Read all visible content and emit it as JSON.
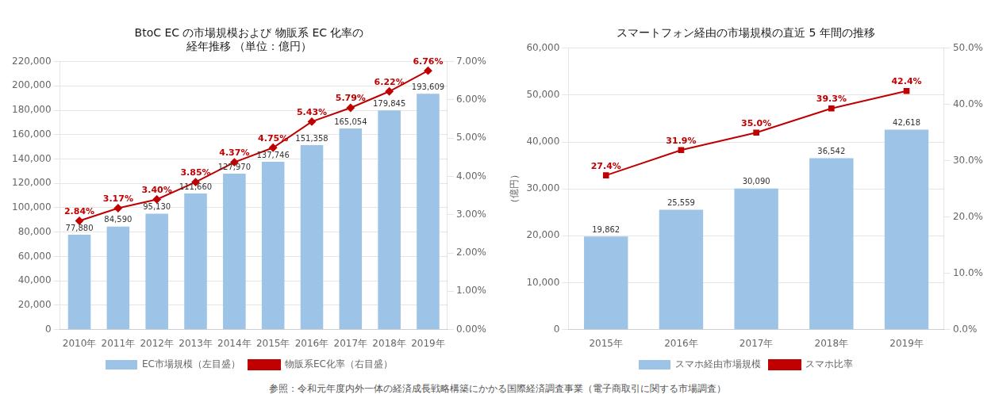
{
  "footer": "参照：令和元年度内外一体の経済成長戦略構築にかかる国際経済調査事業（電子商取引に関する市場調査）",
  "chart_data": [
    {
      "type": "bar",
      "title": [
        "BtoC EC の市場規模および 物販系 EC 化率の",
        "経年推移 （単位：億円）"
      ],
      "categories": [
        "2010年",
        "2011年",
        "2012年",
        "2013年",
        "2014年",
        "2015年",
        "2016年",
        "2017年",
        "2018年",
        "2019年"
      ],
      "series": [
        {
          "name": "EC市場規模（左目盛）",
          "type": "bar",
          "color": "#9DC3E6",
          "values": [
            77880,
            84590,
            95130,
            111660,
            127970,
            137746,
            151358,
            165054,
            179845,
            193609
          ],
          "value_labels": [
            "77,880",
            "84,590",
            "95,130",
            "111,660",
            "127,970",
            "137,746",
            "151,358",
            "165,054",
            "179,845",
            "193,609"
          ]
        },
        {
          "name": "物販系EC化率（右目盛）",
          "type": "line",
          "color": "#C00000",
          "axis": "y2",
          "marker": "diamond",
          "values": [
            2.84,
            3.17,
            3.4,
            3.85,
            4.37,
            4.75,
            5.43,
            5.79,
            6.22,
            6.76
          ],
          "value_labels": [
            "2.84%",
            "3.17%",
            "3.40%",
            "3.85%",
            "4.37%",
            "4.75%",
            "5.43%",
            "5.79%",
            "6.22%",
            "6.76%"
          ]
        }
      ],
      "ylim": [
        0,
        220000
      ],
      "yticks": [
        0,
        {
          "value": 20000,
          "label": "20,000"
        },
        {
          "value": 40000,
          "label": "40,000"
        },
        {
          "value": 60000,
          "label": "60,000"
        },
        {
          "value": 80000,
          "label": "80,000"
        },
        {
          "value": 100000,
          "label": "100,000"
        },
        {
          "value": 120000,
          "label": "120,000"
        },
        {
          "value": 140000,
          "label": "140,000"
        },
        {
          "value": 160000,
          "label": "160,000"
        },
        {
          "value": 180000,
          "label": "180,000"
        },
        {
          "value": 200000,
          "label": "200,000"
        },
        {
          "value": 220000,
          "label": "220,000"
        }
      ],
      "y2lim": [
        0.0,
        7.0
      ],
      "y2ticks": [
        {
          "value": 0.0,
          "label": "0.00%"
        },
        {
          "value": 1.0,
          "label": "1.00%"
        },
        {
          "value": 2.0,
          "label": "2.00%"
        },
        {
          "value": 3.0,
          "label": "3.00%"
        },
        {
          "value": 4.0,
          "label": "4.00%"
        },
        {
          "value": 5.0,
          "label": "5.00%"
        },
        {
          "value": 6.0,
          "label": "6.00%"
        },
        {
          "value": 7.0,
          "label": "7.00%"
        }
      ],
      "grid": true,
      "legend": "bottom",
      "data_labels": true
    },
    {
      "type": "bar",
      "title": "スマートフォン経由の市場規模の直近 5 年間の推移",
      "ylabel": "（億円）",
      "categories": [
        "2015年",
        "2016年",
        "2017年",
        "2018年",
        "2019年"
      ],
      "series": [
        {
          "name": "スマホ経由市場規模",
          "type": "bar",
          "color": "#9DC3E6",
          "values": [
            19862,
            25559,
            30090,
            36542,
            42618
          ],
          "value_labels": [
            "19,862",
            "25,559",
            "30,090",
            "36,542",
            "42,618"
          ]
        },
        {
          "name": "スマホ比率",
          "type": "line",
          "color": "#C00000",
          "axis": "y2",
          "marker": "square",
          "values": [
            27.4,
            31.9,
            35.0,
            39.3,
            42.4
          ],
          "value_labels": [
            "27.4%",
            "31.9%",
            "35.0%",
            "39.3%",
            "42.4%"
          ]
        }
      ],
      "ylim": [
        0,
        60000
      ],
      "yticks": [
        0,
        {
          "value": 10000,
          "label": "10,000"
        },
        {
          "value": 20000,
          "label": "20,000"
        },
        {
          "value": 30000,
          "label": "30,000"
        },
        {
          "value": 40000,
          "label": "40,000"
        },
        {
          "value": 50000,
          "label": "50,000"
        },
        {
          "value": 60000,
          "label": "60,000"
        }
      ],
      "y2lim": [
        0.0,
        50.0
      ],
      "y2ticks": [
        {
          "value": 0.0,
          "label": "0.0%"
        },
        {
          "value": 10.0,
          "label": "10.0%"
        },
        {
          "value": 20.0,
          "label": "20.0%"
        },
        {
          "value": 30.0,
          "label": "30.0%"
        },
        {
          "value": 40.0,
          "label": "40.0%"
        },
        {
          "value": 50.0,
          "label": "50.0%"
        }
      ],
      "grid": true,
      "legend": "bottom",
      "data_labels": true
    }
  ]
}
